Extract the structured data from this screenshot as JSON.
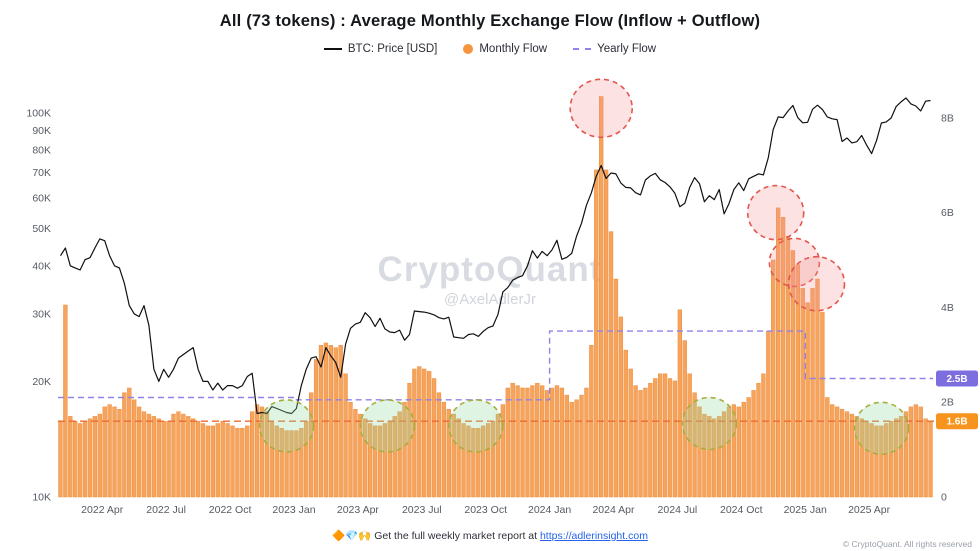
{
  "header": {
    "title": "All (73 tokens) : Average Monthly Exchange Flow (Inflow + Outflow)"
  },
  "legend": [
    {
      "label": "BTC: Price [USD]",
      "swatch": "line",
      "color": "#111111"
    },
    {
      "label": "Monthly Flow",
      "swatch": "dot",
      "color": "#f79440"
    },
    {
      "label": "Yearly Flow",
      "swatch": "dashed",
      "color": "#8f83e8"
    }
  ],
  "watermark": {
    "brand": "CryptoQuant",
    "handle": "@AxelAdlerJr"
  },
  "footer": {
    "emojis": "🔶💎🙌",
    "text": "Get the full weekly market report at",
    "link": "https://adlerinsight.com",
    "copyright": "© CryptoQuant. All rights reserved"
  },
  "chart_data": {
    "type": "bar+line",
    "title": "All (73 tokens) : Average Monthly Exchange Flow (Inflow + Outflow)",
    "x_unit": "week",
    "x_start": "2022-02",
    "x_end": "2025-06",
    "grid": false,
    "legend_position": "top",
    "y_left": {
      "scale": "log",
      "unit": "USD",
      "tick_values_k": [
        100,
        90,
        80,
        70,
        60,
        50,
        40,
        30,
        20,
        10
      ],
      "range_k": [
        10,
        120
      ]
    },
    "y_right": {
      "scale": "linear",
      "unit": "USD",
      "range_b": [
        0,
        8.5
      ],
      "ticks": [
        {
          "label": "8B",
          "v": 8
        },
        {
          "label": "6B",
          "v": 6
        },
        {
          "label": "4B",
          "v": 4
        },
        {
          "label": "2B",
          "v": 2
        },
        {
          "label": "0",
          "v": 0
        }
      ],
      "badges": [
        {
          "label": "2.5B",
          "v": 2.5,
          "bg": "#7d6ee0"
        },
        {
          "label": "1.6B",
          "v": 1.6,
          "bg": "#f7941d"
        }
      ]
    },
    "x_ticks": [
      {
        "label": "2022 Apr",
        "week": 9
      },
      {
        "label": "2022 Jul",
        "week": 22
      },
      {
        "label": "2022 Oct",
        "week": 35
      },
      {
        "label": "2023 Jan",
        "week": 48
      },
      {
        "label": "2023 Apr",
        "week": 61
      },
      {
        "label": "2023 Jul",
        "week": 74
      },
      {
        "label": "2023 Oct",
        "week": 87
      },
      {
        "label": "2024 Jan",
        "week": 100
      },
      {
        "label": "2024 Apr",
        "week": 113
      },
      {
        "label": "2024 Jul",
        "week": 126
      },
      {
        "label": "2024 Oct",
        "week": 139
      },
      {
        "label": "2025 Jan",
        "week": 152
      },
      {
        "label": "2025 Apr",
        "week": 165
      }
    ],
    "series": {
      "monthly_flow_b": [
        1.6,
        4.05,
        1.7,
        1.6,
        1.55,
        1.6,
        1.65,
        1.7,
        1.75,
        1.9,
        1.95,
        1.9,
        1.85,
        2.2,
        2.3,
        2.05,
        1.9,
        1.8,
        1.75,
        1.7,
        1.65,
        1.6,
        1.6,
        1.75,
        1.8,
        1.75,
        1.7,
        1.65,
        1.6,
        1.55,
        1.5,
        1.5,
        1.55,
        1.6,
        1.55,
        1.5,
        1.45,
        1.45,
        1.5,
        1.8,
        1.95,
        1.9,
        1.8,
        1.6,
        1.5,
        1.45,
        1.4,
        1.4,
        1.4,
        1.45,
        1.6,
        2.2,
        2.9,
        3.2,
        3.25,
        3.2,
        3.15,
        3.2,
        2.6,
        2.0,
        1.85,
        1.75,
        1.65,
        1.55,
        1.5,
        1.5,
        1.55,
        1.6,
        1.7,
        1.8,
        2.0,
        2.4,
        2.7,
        2.75,
        2.7,
        2.65,
        2.5,
        2.2,
        2.0,
        1.85,
        1.75,
        1.65,
        1.55,
        1.5,
        1.45,
        1.45,
        1.5,
        1.55,
        1.6,
        1.75,
        1.95,
        2.3,
        2.4,
        2.35,
        2.3,
        2.3,
        2.35,
        2.4,
        2.35,
        2.25,
        2.3,
        2.35,
        2.3,
        2.15,
        2.0,
        2.05,
        2.15,
        2.3,
        3.2,
        6.9,
        8.45,
        6.9,
        5.6,
        4.6,
        3.8,
        3.1,
        2.7,
        2.35,
        2.25,
        2.3,
        2.4,
        2.5,
        2.6,
        2.6,
        2.5,
        2.45,
        3.95,
        3.3,
        2.6,
        2.2,
        1.9,
        1.75,
        1.7,
        1.65,
        1.7,
        1.8,
        1.9,
        1.95,
        1.9,
        2.0,
        2.1,
        2.25,
        2.4,
        2.6,
        3.5,
        5.0,
        6.1,
        5.9,
        5.5,
        5.2,
        4.9,
        4.4,
        4.1,
        4.4,
        4.6,
        3.9,
        2.1,
        1.95,
        1.9,
        1.85,
        1.8,
        1.75,
        1.7,
        1.65,
        1.6,
        1.55,
        1.5,
        1.5,
        1.55,
        1.6,
        1.65,
        1.7,
        1.8,
        1.9,
        1.95,
        1.9,
        1.65,
        1.6
      ],
      "btc_price_k": [
        42.5,
        44.5,
        40,
        39.5,
        39,
        41.5,
        42,
        44.5,
        47,
        46.5,
        42.5,
        40,
        39.5,
        36,
        31.5,
        30,
        29.5,
        31.5,
        28,
        21.5,
        20,
        21.5,
        20.5,
        21.5,
        23,
        23.5,
        24,
        24.5,
        21.5,
        20,
        20,
        19,
        19.8,
        19,
        19.5,
        19.5,
        19.2,
        19.5,
        20.6,
        21,
        16.5,
        16.6,
        16.5,
        17.2,
        17,
        16.8,
        16.6,
        16.5,
        17,
        19.5,
        21.5,
        23,
        23.2,
        21.8,
        24.5,
        23.3,
        22.4,
        20.5,
        25,
        27.5,
        28.2,
        28.5,
        30.2,
        29.3,
        27.8,
        29.2,
        27.4,
        26.9,
        26.8,
        27.2,
        25.6,
        26.5,
        30.5,
        30.4,
        30.3,
        30.1,
        29.8,
        29.3,
        29.1,
        29.4,
        26.1,
        26,
        25.9,
        26.5,
        26.6,
        26.2,
        27,
        27.6,
        27.9,
        29.9,
        34.2,
        35.1,
        36.7,
        37.3,
        37.7,
        40,
        43.8,
        41.9,
        43.6,
        42.5,
        44,
        46.6,
        41.6,
        42.1,
        43.1,
        47.8,
        51.6,
        57.5,
        62,
        68.5,
        73,
        67.5,
        69.8,
        69.4,
        65.7,
        64,
        63.8,
        62,
        61.2,
        66.9,
        68.6,
        69.6,
        67,
        65.9,
        64.2,
        61.8,
        57,
        58.2,
        64,
        67.9,
        65.4,
        58.7,
        60.9,
        59.5,
        63.2,
        54.6,
        58.1,
        63.2,
        65.8,
        62.8,
        67.4,
        68.4,
        69.4,
        69,
        76.5,
        90.6,
        97.7,
        97.3,
        101.2,
        104.6,
        97.2,
        94.3,
        94.6,
        102.3,
        104.8,
        102.1,
        97.7,
        96.6,
        96.1,
        84.3,
        86.1,
        83.6,
        84.2,
        87.4,
        82.5,
        78.4,
        84.7,
        94.2,
        94.8,
        97.1,
        103.9,
        106.9,
        109.4,
        105.6,
        104.3,
        101.2,
        107.3,
        107.8
      ],
      "yearly_flow_b": {
        "segments": [
          {
            "start_week": 0,
            "end_week": 48,
            "value": 2.1
          },
          {
            "start_week": 48,
            "end_week": 100,
            "value": 2.05
          },
          {
            "start_week": 100,
            "end_week": 152,
            "value": 3.5
          },
          {
            "start_week": 152,
            "end_week": 178,
            "value": 2.5
          }
        ]
      }
    },
    "ref_lines": [
      {
        "label": "1.6B",
        "value": 1.6,
        "style": "dashed",
        "color": "#ee6a2f"
      }
    ],
    "annotations": [
      {
        "shape": "circle",
        "kind": "low",
        "week": 46.5,
        "value": 1.5,
        "r": 27
      },
      {
        "shape": "circle",
        "kind": "low",
        "week": 67,
        "value": 1.5,
        "r": 27
      },
      {
        "shape": "circle",
        "kind": "low",
        "week": 85,
        "value": 1.5,
        "r": 27
      },
      {
        "shape": "circle",
        "kind": "low",
        "week": 132.5,
        "value": 1.55,
        "r": 27
      },
      {
        "shape": "circle",
        "kind": "low",
        "week": 167.5,
        "value": 1.45,
        "r": 27
      },
      {
        "shape": "circle",
        "kind": "high",
        "week": 110.5,
        "value": 8.2,
        "r": 31
      },
      {
        "shape": "circle",
        "kind": "high",
        "week": 146,
        "value": 6.0,
        "r": 28
      },
      {
        "shape": "circle",
        "kind": "high",
        "week": 149.8,
        "value": 4.95,
        "r": 25
      },
      {
        "shape": "circle",
        "kind": "high",
        "week": 154.3,
        "value": 4.5,
        "r": 28
      }
    ],
    "colors": {
      "bar_fill": "#f6a45c",
      "bar_stroke": "#ec8d3f",
      "price_line": "#111111",
      "yearly_line": "#8f83e8",
      "ref_line": "#ee6a2f",
      "low_circle_stroke": "#a8ad3e",
      "low_circle_fill": "rgba(150,220,160,0.30)",
      "high_circle_stroke": "#e2574e",
      "high_circle_fill": "rgba(245,150,150,0.28)",
      "axis_text": "#555b63"
    }
  }
}
